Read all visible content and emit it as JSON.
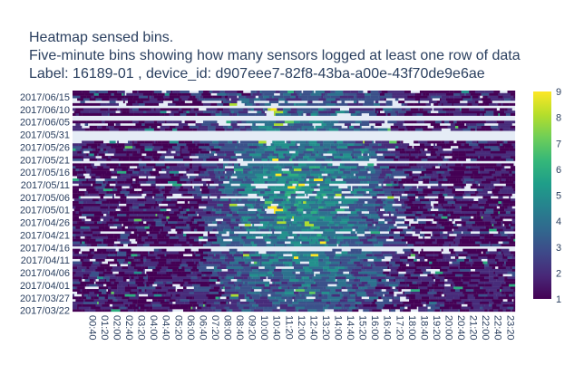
{
  "chart_data": {
    "type": "heatmap",
    "title_lines": [
      "Heatmap sensed bins.",
      "Five-minute bins showing how many sensors logged at least one row of data",
      "Label: 16189-01 , device_id: d907eee7-82f8-43ba-a00e-43f70de9e6ae"
    ],
    "xlabel": "",
    "ylabel": "",
    "x_start": "00:00",
    "x_step_minutes": 5,
    "x_count": 288,
    "x_ticks": [
      "00:40",
      "01:20",
      "02:00",
      "02:40",
      "03:20",
      "04:00",
      "04:40",
      "05:20",
      "06:00",
      "06:40",
      "07:20",
      "08:00",
      "08:40",
      "09:20",
      "10:00",
      "10:40",
      "11:20",
      "12:00",
      "12:40",
      "13:20",
      "14:00",
      "14:40",
      "15:20",
      "16:00",
      "16:40",
      "17:20",
      "18:00",
      "18:40",
      "19:20",
      "20:00",
      "20:40",
      "21:20",
      "22:00",
      "22:40",
      "23:20"
    ],
    "y_start": "2017-03-22",
    "y_end": "2017-06-17",
    "y_ticks": [
      "2017/03/22",
      "2017/03/27",
      "2017/04/01",
      "2017/04/06",
      "2017/04/11",
      "2017/04/16",
      "2017/04/21",
      "2017/04/26",
      "2017/05/01",
      "2017/05/06",
      "2017/05/11",
      "2017/05/16",
      "2017/05/21",
      "2017/05/26",
      "2017/05/31",
      "2017/06/05",
      "2017/06/10",
      "2017/06/15"
    ],
    "empty_days": [
      "2017-04-16",
      "2017-05-20",
      "2017-05-29",
      "2017-05-30",
      "2017-05-31",
      "2017-06-01",
      "2017-06-06",
      "2017-06-07",
      "2017-06-11"
    ],
    "sparse_days": [
      "2017-04-15",
      "2017-04-22",
      "2017-05-06",
      "2017-05-11",
      "2017-06-04",
      "2017-06-13"
    ],
    "zmin": 1,
    "zmax": 9,
    "colorbar_ticks": [
      1,
      2,
      3,
      4,
      5,
      6,
      7,
      8,
      9
    ],
    "colorscale": "Viridis",
    "colorscale_stops": [
      "#440154",
      "#482878",
      "#3e4989",
      "#31688e",
      "#26828e",
      "#1f9e89",
      "#35b779",
      "#6ece58",
      "#b5de2b",
      "#fde725"
    ],
    "missing_color": "#e5ecf6"
  }
}
